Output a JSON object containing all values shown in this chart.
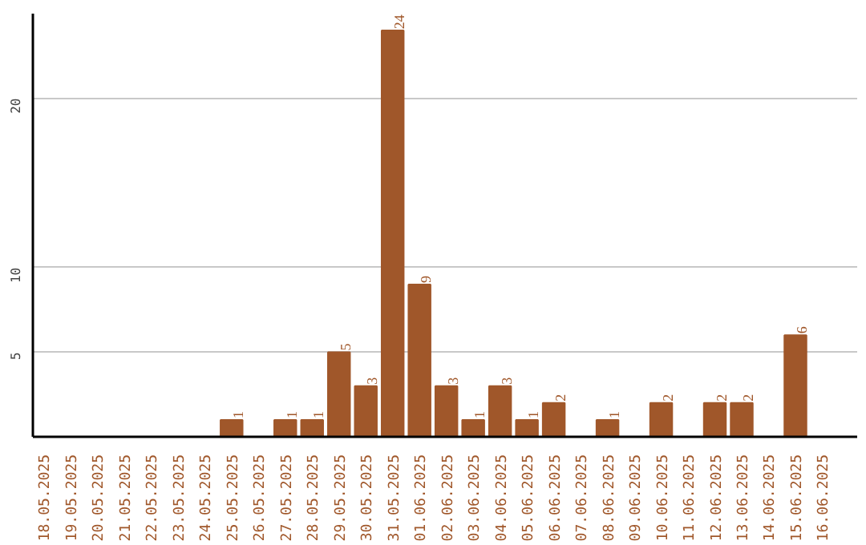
{
  "chart_data": {
    "type": "bar",
    "categories": [
      "18.05.2025",
      "19.05.2025",
      "20.05.2025",
      "21.05.2025",
      "22.05.2025",
      "23.05.2025",
      "24.05.2025",
      "25.05.2025",
      "26.05.2025",
      "27.05.2025",
      "28.05.2025",
      "29.05.2025",
      "30.05.2025",
      "31.05.2025",
      "01.06.2025",
      "02.06.2025",
      "03.06.2025",
      "04.06.2025",
      "05.06.2025",
      "06.06.2025",
      "07.06.2025",
      "08.06.2025",
      "09.06.2025",
      "10.06.2025",
      "11.06.2025",
      "12.06.2025",
      "13.06.2025",
      "14.06.2025",
      "15.06.2025",
      "16.06.2025"
    ],
    "values": [
      0,
      0,
      0,
      0,
      0,
      0,
      0,
      1,
      0,
      1,
      1,
      5,
      3,
      24,
      9,
      3,
      1,
      3,
      1,
      2,
      0,
      1,
      0,
      2,
      0,
      2,
      2,
      0,
      6,
      0
    ],
    "value_labels": [
      null,
      null,
      null,
      null,
      null,
      null,
      null,
      "1",
      null,
      "1",
      "1",
      "5",
      "3",
      "24",
      "9",
      "3",
      "1",
      "3",
      "1",
      "2",
      null,
      "1",
      null,
      "2",
      null,
      "2",
      "2",
      null,
      "6",
      null
    ],
    "color": "#a0572a",
    "ylim": [
      0,
      25
    ],
    "yticks": [
      5,
      10,
      20
    ],
    "grid": "y"
  }
}
